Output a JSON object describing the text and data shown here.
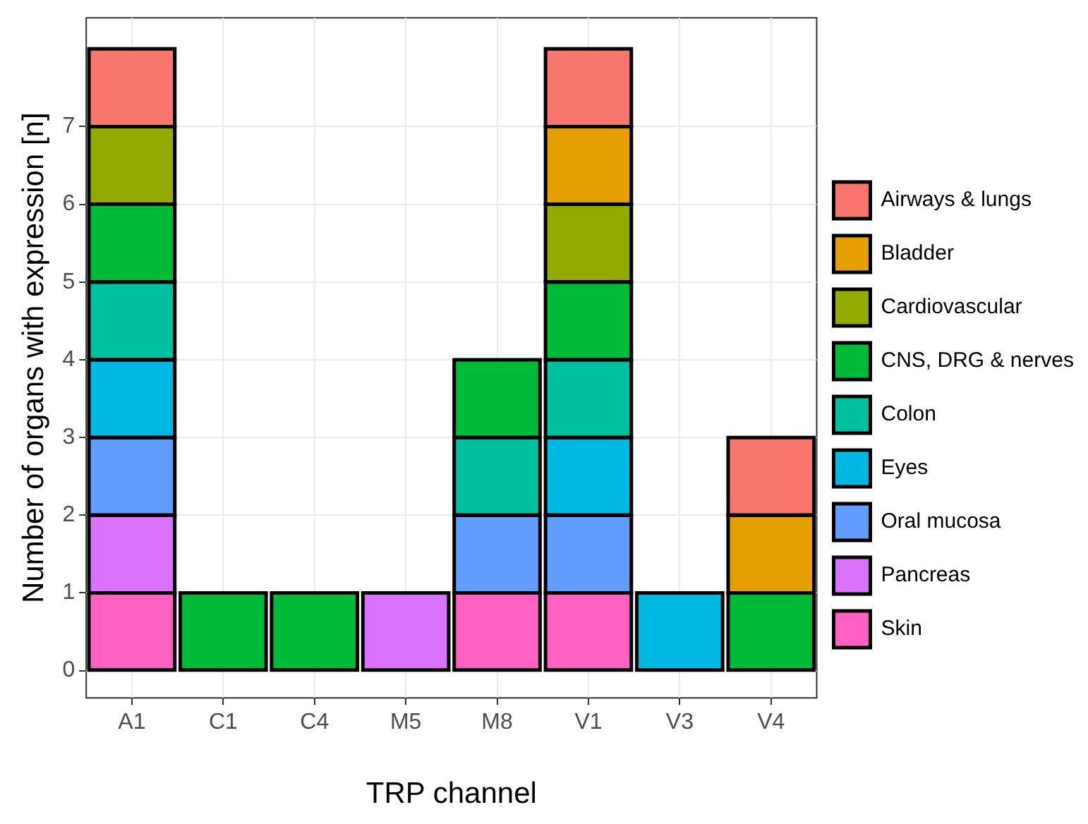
{
  "chart_data": {
    "type": "bar",
    "stacked": true,
    "xlabel": "TRP channel",
    "ylabel": "Number of organs with expression [n]",
    "categories": [
      "A1",
      "C1",
      "C4",
      "M5",
      "M8",
      "V1",
      "V3",
      "V4"
    ],
    "series": [
      {
        "name": "Skin",
        "color": "#ff61c3",
        "values": [
          1,
          0,
          0,
          0,
          1,
          1,
          0,
          0
        ]
      },
      {
        "name": "Pancreas",
        "color": "#db72fb",
        "values": [
          1,
          0,
          0,
          1,
          0,
          0,
          0,
          0
        ]
      },
      {
        "name": "Oral mucosa",
        "color": "#619cff",
        "values": [
          1,
          0,
          0,
          0,
          1,
          1,
          0,
          0
        ]
      },
      {
        "name": "Eyes",
        "color": "#00b9e3",
        "values": [
          1,
          0,
          0,
          0,
          0,
          1,
          1,
          0
        ]
      },
      {
        "name": "Colon",
        "color": "#00c19f",
        "values": [
          1,
          0,
          0,
          0,
          1,
          1,
          0,
          0
        ]
      },
      {
        "name": "CNS, DRG & nerves",
        "color": "#00ba38",
        "values": [
          1,
          1,
          1,
          0,
          1,
          1,
          0,
          1
        ]
      },
      {
        "name": "Cardiovascular",
        "color": "#93aa00",
        "values": [
          1,
          0,
          0,
          0,
          0,
          1,
          0,
          0
        ]
      },
      {
        "name": "Bladder",
        "color": "#e69f00",
        "values": [
          0,
          0,
          0,
          0,
          0,
          1,
          0,
          1
        ]
      },
      {
        "name": "Airways & lungs",
        "color": "#f8766d",
        "values": [
          1,
          0,
          0,
          0,
          0,
          1,
          0,
          1
        ]
      }
    ],
    "ylim": [
      -0.35,
      8.4
    ],
    "yticks": [
      0,
      1,
      2,
      3,
      4,
      5,
      6,
      7
    ],
    "grid": true,
    "legend": "right"
  }
}
